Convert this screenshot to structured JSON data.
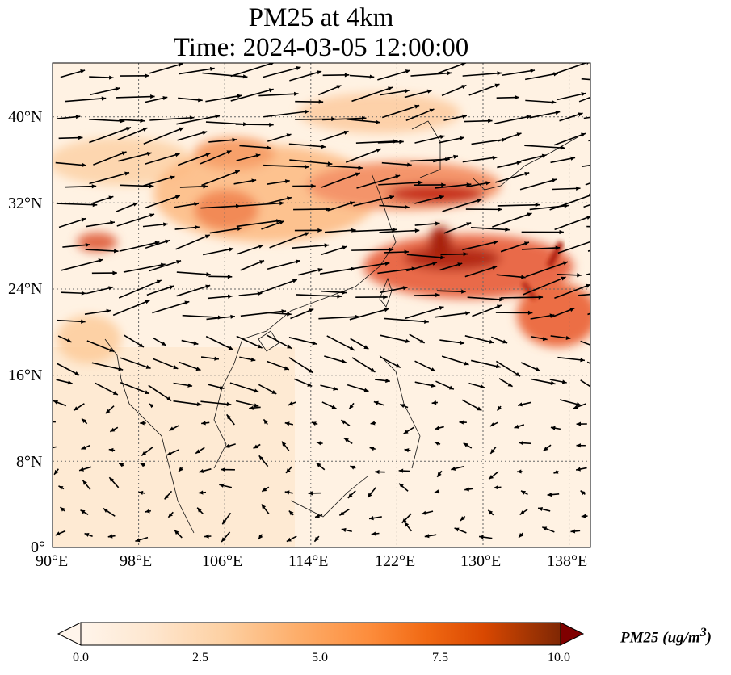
{
  "figure": {
    "title_line1": "PM25 at 4km",
    "title_line2": "Time: 2024-03-05 12:00:00"
  },
  "axes": {
    "lon_range": [
      90,
      140
    ],
    "lat_range": [
      0,
      45
    ],
    "x_ticks": [
      "90°E",
      "98°E",
      "106°E",
      "114°E",
      "122°E",
      "130°E",
      "138°E"
    ],
    "y_ticks": [
      "0°",
      "8°N",
      "16°N",
      "24°N",
      "32°N",
      "40°N"
    ],
    "x_tick_values": [
      90,
      98,
      106,
      114,
      122,
      130,
      138
    ],
    "y_tick_values": [
      0,
      8,
      16,
      24,
      32,
      40
    ],
    "gridlines": true
  },
  "colorbar": {
    "label": "PM25 (ug/m",
    "label_sup": "3",
    "label_end": ")",
    "ticks": [
      "0.0",
      "2.5",
      "5.0",
      "7.5",
      "10.0"
    ],
    "tick_values": [
      0,
      2.5,
      5.0,
      7.5,
      10.0
    ],
    "range": [
      0,
      10
    ],
    "extend": "both",
    "colors": [
      "#fff5eb",
      "#fdd9b4",
      "#fdb97d",
      "#fd8c3b",
      "#e95e0d",
      "#c43d03",
      "#8c1f04",
      "#7f0000"
    ]
  },
  "chart_data": {
    "type": "heatmap",
    "variable": "PM25",
    "units": "ug/m3",
    "level": "4km",
    "time": "2024-03-05 12:00:00",
    "high_pm_regions": [
      {
        "lon": [
          104,
          121
        ],
        "lat": [
          28,
          39
        ],
        "value": 4.5
      },
      {
        "lon": [
          118,
          130
        ],
        "lat": [
          31,
          36
        ],
        "value": 6.5
      },
      {
        "lon": [
          120,
          134
        ],
        "lat": [
          23,
          28
        ],
        "value": 8
      },
      {
        "lon": [
          124,
          127
        ],
        "lat": [
          25,
          30
        ],
        "value": 9
      },
      {
        "lon": [
          134,
          140
        ],
        "lat": [
          19,
          24
        ],
        "value": 6.5
      },
      {
        "lon": [
          93,
          97
        ],
        "lat": [
          27,
          29
        ],
        "value": 6
      }
    ],
    "wind_vectors": "westerly flow, strongest north of 20°N"
  }
}
